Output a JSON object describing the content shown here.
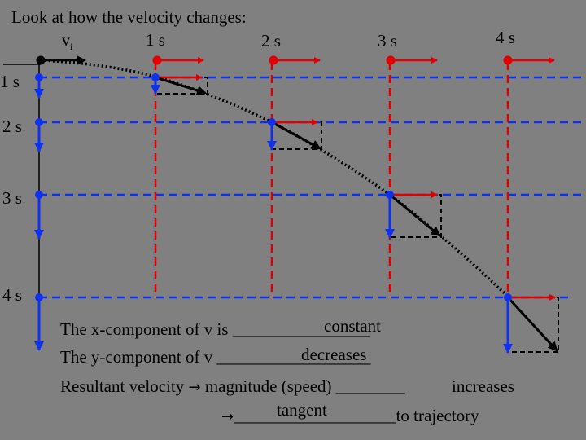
{
  "title": "Look at how the velocity changes:",
  "vi_label": "v",
  "vi_subscript": "i",
  "top_time_labels": [
    "1 s",
    "2 s",
    "3 s",
    "4 s"
  ],
  "side_time_labels": [
    "1 s",
    "2 s",
    "3 s",
    "4 s"
  ],
  "colors": {
    "background": "#808080",
    "horizontal_component": "#e00000",
    "vertical_component": "#1030f0",
    "resultant": "#000000"
  },
  "statements": {
    "x_component": {
      "prefix": "The x-component of v  is ",
      "blank": "________________",
      "answer": "constant"
    },
    "y_component": {
      "prefix": "The y-component of v ",
      "blank": "__________________",
      "answer": "decreases"
    },
    "resultant": {
      "prefix": "Resultant velocity ",
      "arrow_glyph": "→",
      "middle": " magnitude (speed) ",
      "blank": "________",
      "answer": "increases"
    },
    "direction": {
      "arrow_glyph": "→",
      "blank": "___________________",
      "answer": "tangent",
      "suffix": "to trajectory"
    }
  }
}
